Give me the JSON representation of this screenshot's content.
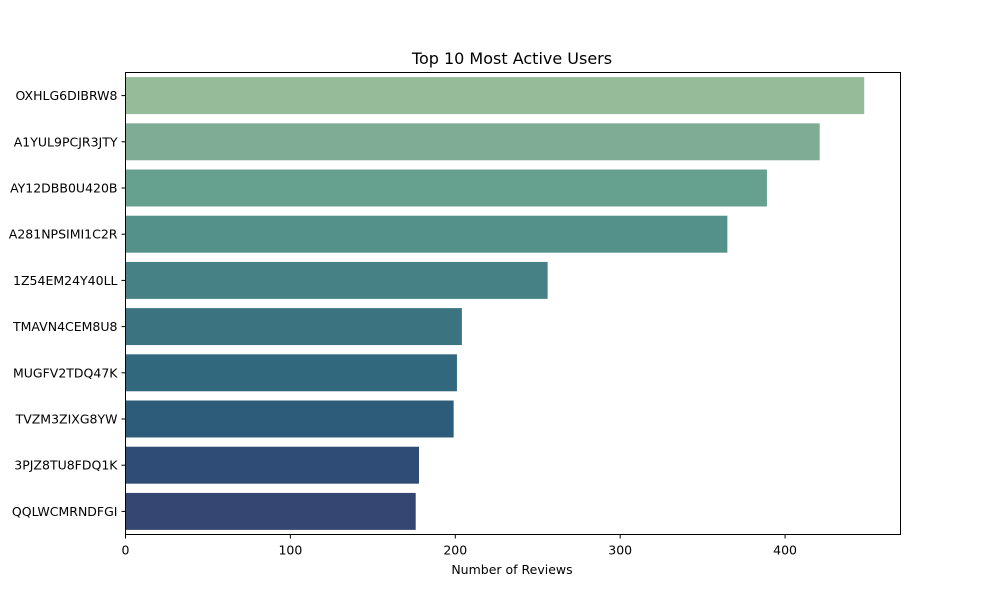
{
  "chart_data": {
    "type": "bar",
    "orientation": "horizontal",
    "title": "Top 10 Most Active Users",
    "xlabel": "Number of Reviews",
    "ylabel": "",
    "categories": [
      "OXHLG6DIBRW8",
      "A1YUL9PCJR3JTY",
      "AY12DBB0U420B",
      "A281NPSIMI1C2R",
      "1Z54EM24Y40LL",
      "TMAVN4CEM8U8",
      "MUGFV2TDQ47K",
      "TVZM3ZIXG8YW",
      "3PJZ8TU8FDQ1K",
      "QQLWCMRNDFGI"
    ],
    "values": [
      448,
      421,
      389,
      365,
      256,
      204,
      201,
      199,
      178,
      176
    ],
    "colors": [
      "#95bb98",
      "#7eac94",
      "#66a08e",
      "#54918a",
      "#468285",
      "#3b7480",
      "#32687d",
      "#2c5c7a",
      "#2f4c77",
      "#344671"
    ],
    "xlim": [
      0,
      470
    ],
    "xticks": [
      0,
      100,
      200,
      300,
      400
    ],
    "grid": false,
    "legend": "none"
  }
}
